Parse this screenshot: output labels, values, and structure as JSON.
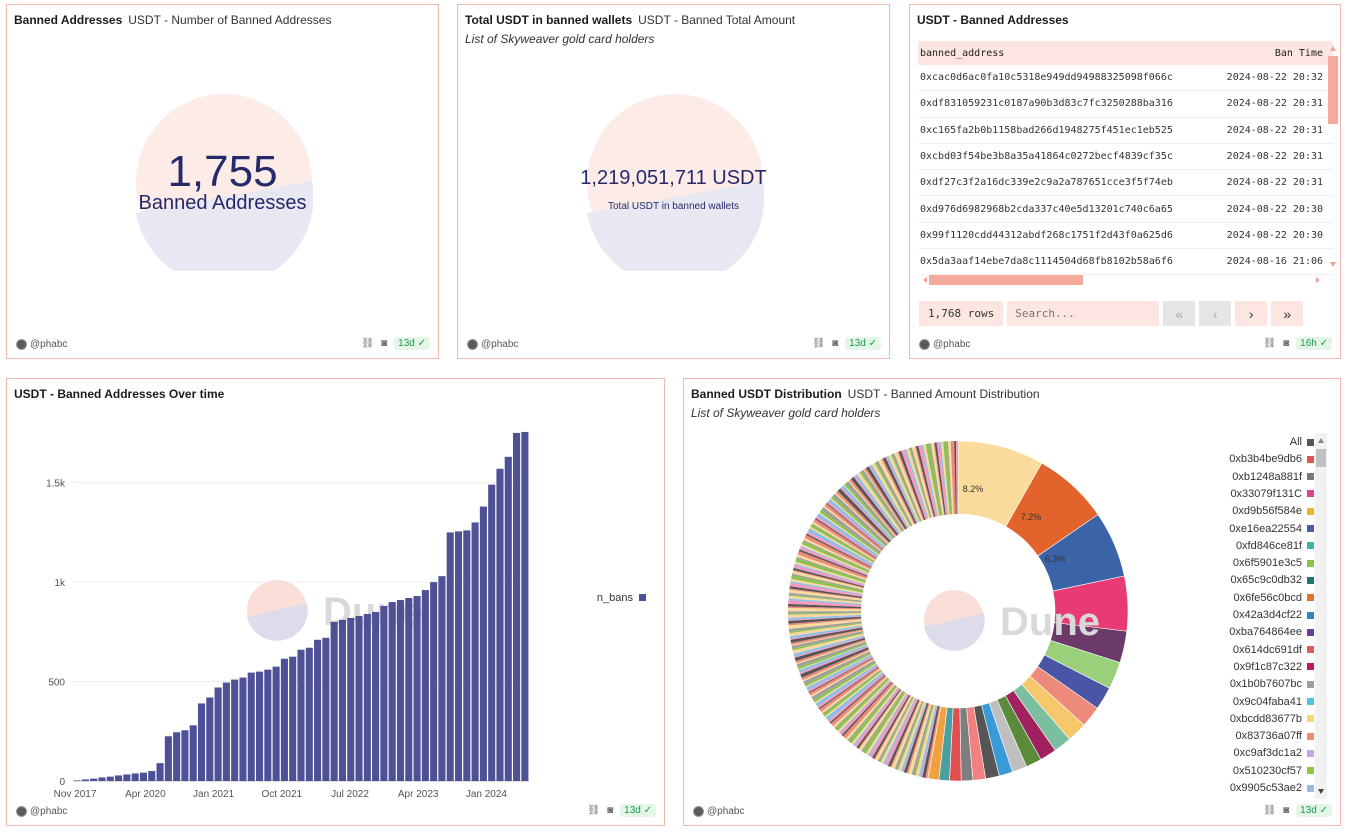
{
  "panels": {
    "banned_count": {
      "title": "Banned Addresses",
      "subtitle": "USDT - Number of Banned Addresses",
      "value": "1,755",
      "label": "Banned Addresses",
      "author": "@phabc",
      "age": "13d ✓"
    },
    "banned_total": {
      "title": "Total USDT in banned wallets",
      "subtitle": "USDT - Banned Total Amount",
      "description": "List of Skyweaver gold card holders",
      "value": "1,219,051,711 USDT",
      "label": "Total USDT in banned wallets",
      "author": "@phabc",
      "age": "13d ✓"
    },
    "banned_table": {
      "title": "USDT - Banned Addresses",
      "columns": [
        "banned_address",
        "Ban Time"
      ],
      "rows": [
        [
          "0xcac0d6ac0fa10c5318e949dd94988325098f066c",
          "2024-08-22 20:32"
        ],
        [
          "0xdf831059231c0187a90b3d83c7fc3250288ba316",
          "2024-08-22 20:31"
        ],
        [
          "0xc165fa2b0b1158bad266d1948275f451ec1eb525",
          "2024-08-22 20:31"
        ],
        [
          "0xcbd03f54be3b8a35a41864c0272becf4839cf35c",
          "2024-08-22 20:31"
        ],
        [
          "0xdf27c3f2a16dc339e2c9a2a787651cce3f5f74eb",
          "2024-08-22 20:31"
        ],
        [
          "0xd976d6982968b2cda337c40e5d13201c740c6a65",
          "2024-08-22 20:30"
        ],
        [
          "0x99f1120cdd44312abdf268c1751f2d43f0a625d6",
          "2024-08-22 20:30"
        ],
        [
          "0x5da3aaf14ebe7da8c1114504d68fb8102b58a6f6",
          "2024-08-16 21:06"
        ]
      ],
      "row_count": "1,768 rows",
      "search_placeholder": "Search...",
      "author": "@phabc",
      "age": "16h ✓"
    },
    "over_time": {
      "title": "USDT - Banned Addresses Over time",
      "author": "@phabc",
      "age": "13d ✓",
      "watermark": "Dune"
    },
    "distribution": {
      "title": "Banned USDT Distribution",
      "subtitle": "USDT - Banned Amount Distribution",
      "description": "List of Skyweaver gold card holders",
      "author": "@phabc",
      "age": "13d ✓",
      "watermark": "Dune",
      "legend": [
        {
          "label": "All",
          "color": "#555555"
        },
        {
          "label": "0xb3b4be9db6",
          "color": "#e5534b"
        },
        {
          "label": "0xb1248a881f",
          "color": "#7a7a7a"
        },
        {
          "label": "0x33079f131C",
          "color": "#d9468a"
        },
        {
          "label": "0xd9b56f584e",
          "color": "#f0b429"
        },
        {
          "label": "0xe16ea22554",
          "color": "#4a5ba8"
        },
        {
          "label": "0xfd846ce81f",
          "color": "#3cb8a6"
        },
        {
          "label": "0x6f5901e3c5",
          "color": "#8bc34a"
        },
        {
          "label": "0x65c9c0db32",
          "color": "#1f7a6b"
        },
        {
          "label": "0x6fe56c0bcd",
          "color": "#e8702a"
        },
        {
          "label": "0x42a3d4cf22",
          "color": "#2e86c1"
        },
        {
          "label": "0xba764864ee",
          "color": "#6a3d9a"
        },
        {
          "label": "0x614dc691df",
          "color": "#e05a5a"
        },
        {
          "label": "0x9f1c87c322",
          "color": "#c2185b"
        },
        {
          "label": "0x1b0b7607bc",
          "color": "#9e9e9e"
        },
        {
          "label": "0x9c04faba41",
          "color": "#4fc3d9"
        },
        {
          "label": "0xbcdd83677b",
          "color": "#f7d774"
        },
        {
          "label": "0x83736a07ff",
          "color": "#f28b6e"
        },
        {
          "label": "0xc9af3dc1a2",
          "color": "#c5a3e8"
        },
        {
          "label": "0x510230cf57",
          "color": "#8dc63f"
        },
        {
          "label": "0x9905c53ae2",
          "color": "#9bb8e8"
        }
      ]
    }
  },
  "chart_data": [
    {
      "type": "bar",
      "series": [
        {
          "name": "n_bans",
          "color": "#4e5196"
        }
      ],
      "x_ticks": [
        "Nov 2017",
        "Apr 2020",
        "Jan 2021",
        "Oct 2021",
        "Jul 2022",
        "Apr 2023",
        "Jan 2024"
      ],
      "y_ticks": [
        "0",
        "500",
        "1k",
        "1.5k"
      ],
      "ylim": [
        0,
        1800
      ],
      "values": [
        3,
        8,
        12,
        18,
        22,
        28,
        33,
        38,
        42,
        50,
        90,
        225,
        245,
        255,
        280,
        390,
        420,
        470,
        495,
        510,
        520,
        545,
        550,
        560,
        575,
        615,
        625,
        660,
        670,
        710,
        720,
        800,
        810,
        820,
        830,
        840,
        850,
        880,
        900,
        910,
        920,
        930,
        960,
        1000,
        1030,
        1250,
        1255,
        1260,
        1300,
        1380,
        1490,
        1570,
        1630,
        1750,
        1755
      ],
      "grid": true,
      "legend_position": "right"
    },
    {
      "type": "pie",
      "labels_shown": [
        "8.2%",
        "7.2%",
        "6.3%"
      ],
      "slices": [
        8.2,
        7.2,
        6.3,
        5.2,
        3.0,
        2.6,
        2.2,
        2.0,
        1.9,
        1.7,
        1.6,
        1.5,
        1.4,
        1.3,
        1.3,
        1.2,
        1.1,
        1.1,
        1.0,
        1.0
      ]
    }
  ]
}
